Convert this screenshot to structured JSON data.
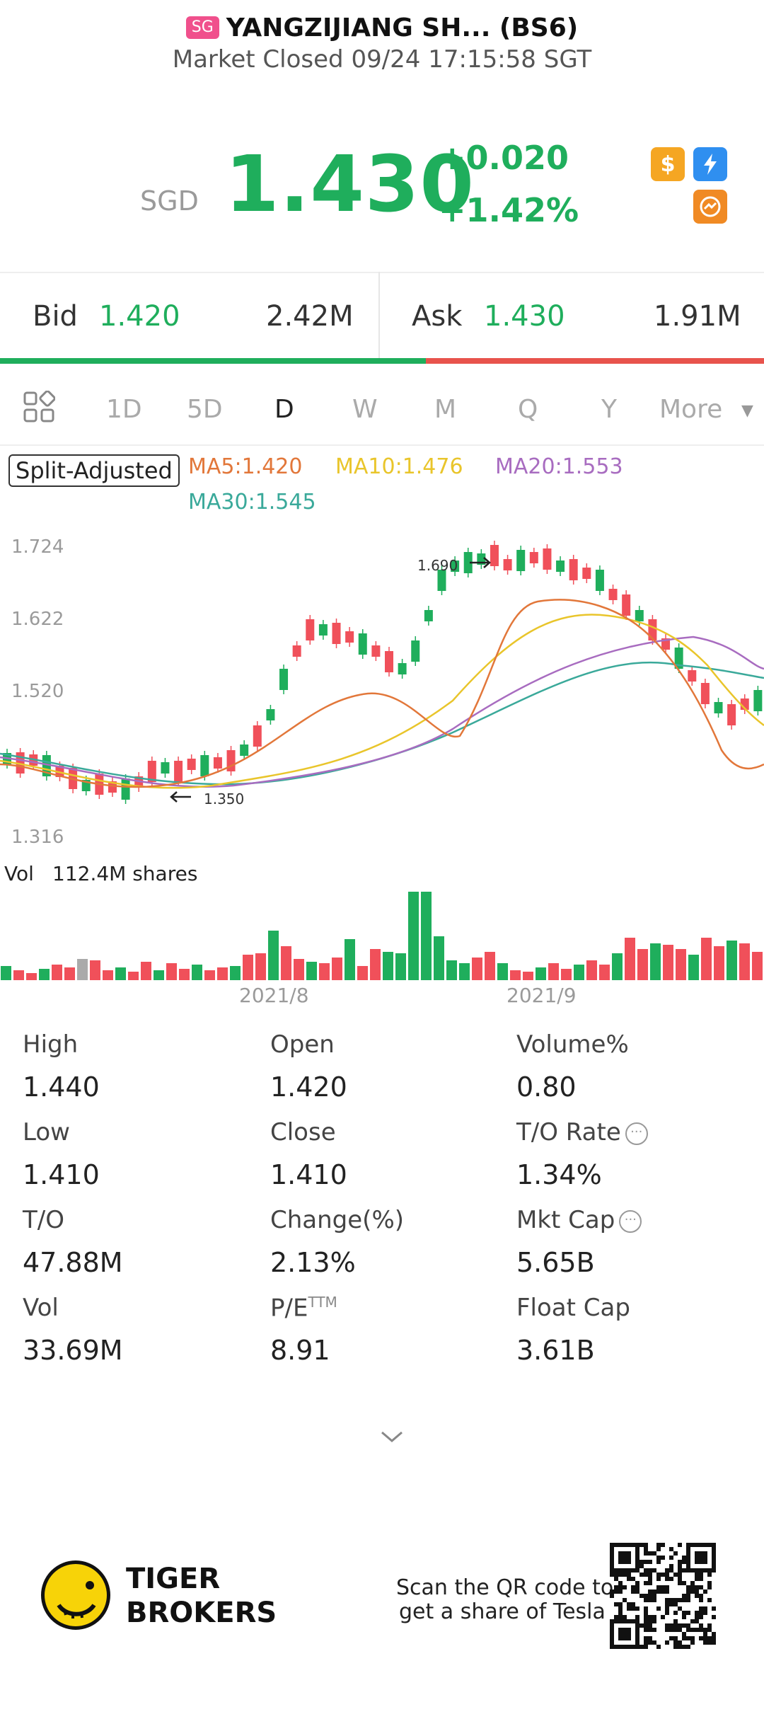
{
  "header": {
    "market_badge": "SG",
    "title": "YANGZIJIANG SH... (BS6)",
    "status": "Market Closed 09/24 17:15:58 SGT"
  },
  "quote": {
    "currency": "SGD",
    "price": "1.430",
    "change": "+0.020",
    "change_pct": "+1.42%",
    "color_up": "#1fae5c"
  },
  "bid_ask": {
    "bid_label": "Bid",
    "bid_price": "1.420",
    "bid_size": "2.42M",
    "ask_label": "Ask",
    "ask_price": "1.430",
    "ask_size": "1.91M",
    "bid_ratio": 0.557
  },
  "tabs": {
    "items": [
      "1D",
      "5D",
      "D",
      "W",
      "M",
      "Q",
      "Y",
      "More"
    ],
    "active": "D"
  },
  "chart": {
    "adjust_label": "Split-Adjusted",
    "ma5": "MA5:1.420",
    "ma10": "MA10:1.476",
    "ma20": "MA20:1.553",
    "ma30": "MA30:1.545",
    "y_ticks": [
      "1.724",
      "1.622",
      "1.520",
      "1.316"
    ],
    "high_marker": "1.690",
    "low_marker": "1.350",
    "vol_label": "Vol",
    "vol_value": "112.4M shares",
    "x_ticks": [
      "2021/8",
      "2021/9"
    ],
    "colors": {
      "up": "#1fae5c",
      "down": "#f0505a",
      "ma5": "#e2773a",
      "ma10": "#e9c52b",
      "ma20": "#a86cc0",
      "ma30": "#3aa99a"
    }
  },
  "stats": {
    "high_label": "High",
    "high": "1.440",
    "open_label": "Open",
    "open": "1.420",
    "volpct_label": "Volume%",
    "volpct": "0.80",
    "low_label": "Low",
    "low": "1.410",
    "close_label": "Close",
    "close": "1.410",
    "to_rate_label": "T/O Rate",
    "to_rate": "1.34%",
    "to_label": "T/O",
    "to": "47.88M",
    "change_label": "Change(%)",
    "change": "2.13%",
    "mktcap_label": "Mkt Cap",
    "mktcap": "5.65B",
    "vol_label": "Vol",
    "vol": "33.69M",
    "pe_label": "P/E",
    "pe_sup": "TTM",
    "pe": "8.91",
    "floatcap_label": "Float Cap",
    "floatcap": "3.61B"
  },
  "footer": {
    "brand_line1": "TIGER",
    "brand_line2": "BROKERS",
    "promo_line1": "Scan the QR code to",
    "promo_line2": "get a share of Tesla"
  }
}
